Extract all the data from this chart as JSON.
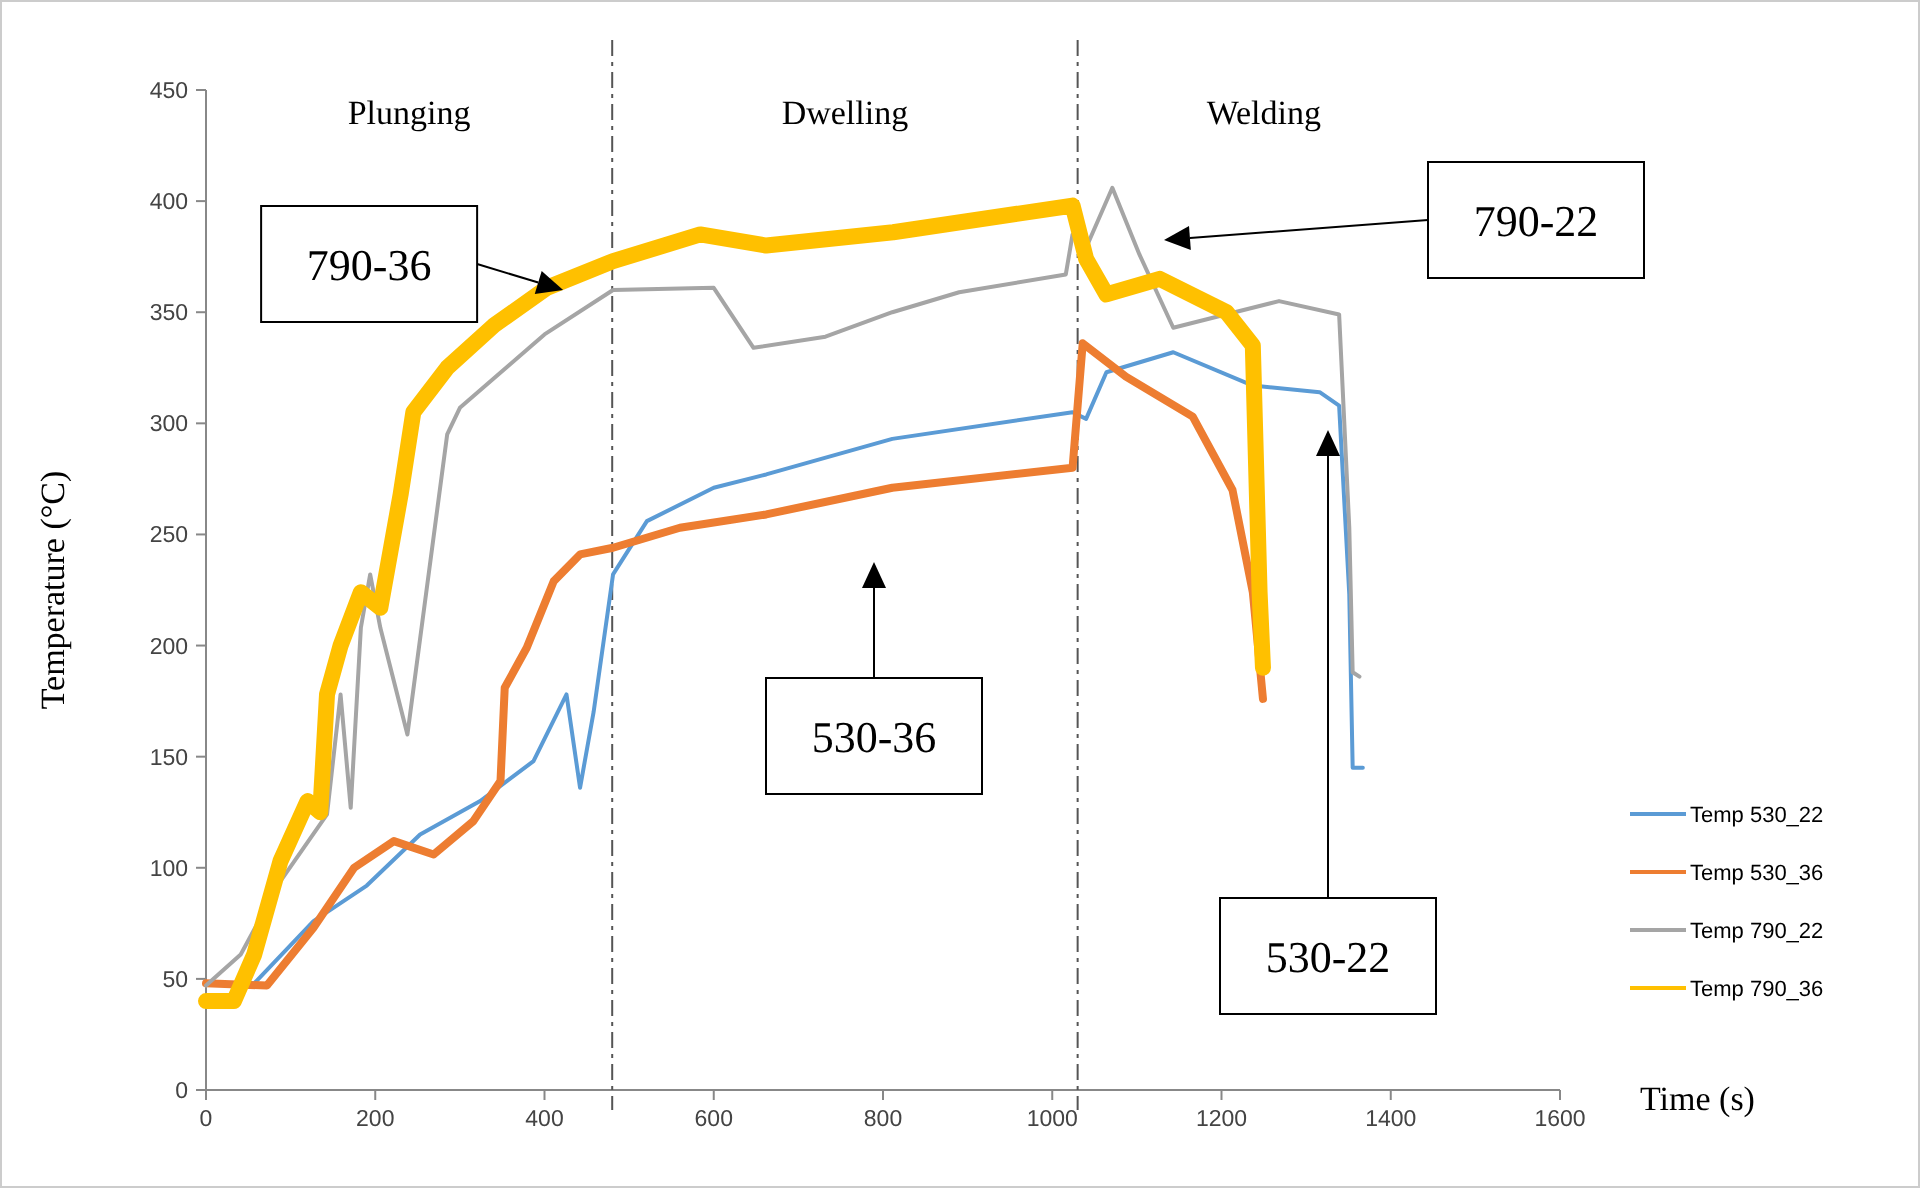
{
  "chart_data": {
    "type": "line",
    "xlabel": "Time (s)",
    "ylabel": "Temperature (°C)",
    "xlim": [
      0,
      1600
    ],
    "xticks": [
      0,
      200,
      400,
      600,
      800,
      1000,
      1200,
      1400,
      1600
    ],
    "ylim": [
      0,
      450
    ],
    "yticks": [
      0,
      50,
      100,
      150,
      200,
      250,
      300,
      350,
      400,
      450
    ],
    "grid": false,
    "legend": "right",
    "marker": "none",
    "line_style": "solid",
    "ref_lines": [
      {
        "axis": "x",
        "value": 480,
        "color": "#555555",
        "line_style": "dashed"
      },
      {
        "axis": "x",
        "value": 1030,
        "color": "#555555",
        "line_style": "dashed"
      }
    ],
    "annotations": [
      "Plunging",
      "Dwelling",
      "Welding",
      {
        "text": "790-36",
        "x": 422,
        "y": 360
      },
      "790-22",
      "530-36",
      "530-22"
    ],
    "series": [
      {
        "name": "Temp 530_22",
        "color": "#5b9bd5",
        "x": [
          0,
          57,
          127,
          190,
          253,
          324,
          387,
          426,
          442,
          458,
          481,
          521,
          600,
          662,
          811,
          1024,
          1040,
          1064,
          1143,
          1237,
          1316,
          1339,
          1351,
          1355,
          1367
        ],
        "values": [
          48,
          48,
          76,
          92,
          115,
          130,
          148,
          178,
          136,
          170,
          232,
          256,
          271,
          277,
          293,
          305,
          302,
          323,
          332,
          317,
          314,
          308,
          223,
          145,
          145
        ]
      },
      {
        "name": "Temp 530_36",
        "color": "#ed7d31",
        "x": [
          0,
          72,
          127,
          175,
          222,
          269,
          316,
          348,
          353,
          379,
          411,
          442,
          481,
          560,
          662,
          811,
          1024,
          1036,
          1087,
          1166,
          1213,
          1237,
          1249
        ],
        "values": [
          48,
          47,
          73,
          100,
          112,
          106,
          121,
          139,
          181,
          199,
          229,
          241,
          244,
          253,
          259,
          271,
          280,
          336,
          321,
          303,
          270,
          224,
          176
        ]
      },
      {
        "name": "Temp 790_22",
        "color": "#a5a5a5",
        "x": [
          0,
          41,
          88,
          143,
          159,
          171,
          183,
          194,
          206,
          238,
          285,
          300,
          400,
          481,
          600,
          647,
          732,
          811,
          890,
          1016,
          1024,
          1040,
          1071,
          1103,
          1143,
          1205,
          1268,
          1339,
          1351,
          1355,
          1363
        ],
        "values": [
          47,
          61,
          94,
          124,
          178,
          127,
          208,
          232,
          208,
          160,
          295,
          307,
          340,
          360,
          361,
          334,
          339,
          350,
          359,
          367,
          385,
          379,
          406,
          376,
          343,
          349,
          355,
          349,
          253,
          188,
          186
        ]
      },
      {
        "name": "Temp 790_36",
        "color": "#ffc000",
        "x": [
          0,
          33,
          57,
          88,
          120,
          135,
          143,
          159,
          183,
          206,
          230,
          245,
          285,
          340,
          403,
          481,
          584,
          662,
          812,
          1024,
          1040,
          1064,
          1127,
          1206,
          1237,
          1245,
          1249
        ],
        "values": [
          40,
          40,
          61,
          103,
          130,
          125,
          178,
          200,
          224,
          217,
          268,
          305,
          325,
          344,
          361,
          373,
          385,
          380,
          386,
          398,
          374,
          358,
          365,
          350,
          335,
          224,
          190
        ]
      }
    ]
  }
}
